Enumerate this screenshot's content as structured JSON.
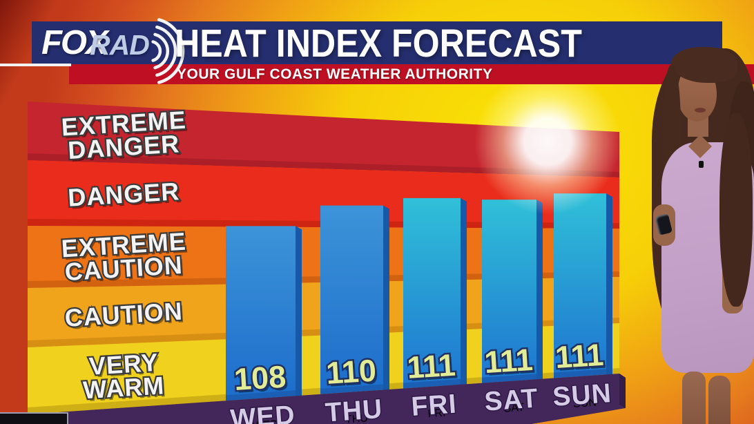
{
  "station": {
    "logo_fox": "FOX",
    "logo_rad": "RAD"
  },
  "header": {
    "title": "HEAT INDEX FORECAST",
    "subtitle": "YOUR GULF COAST WEATHER AUTHORITY"
  },
  "chart_data": {
    "type": "bar",
    "title": "HEAT INDEX FORECAST",
    "categories": [
      "WED",
      "THU",
      "FRI",
      "SAT",
      "SUN"
    ],
    "values": [
      108,
      110,
      111,
      111,
      111
    ],
    "risk_bands": [
      {
        "label": "EXTREME DANGER",
        "lines": [
          "EXTREME",
          "DANGER"
        ],
        "color": "#C5252E",
        "bevel": "#AD1F28"
      },
      {
        "label": "DANGER",
        "lines": [
          "DANGER"
        ],
        "color": "#E92C1B",
        "bevel": "#CE2512"
      },
      {
        "label": "EXTREME CAUTION",
        "lines": [
          "EXTREME",
          "CAUTION"
        ],
        "color": "#EE7317",
        "bevel": "#D2620F"
      },
      {
        "label": "CAUTION",
        "lines": [
          "CAUTION"
        ],
        "color": "#F0A41B",
        "bevel": "#D68E13"
      },
      {
        "label": "VERY WARM",
        "lines": [
          "VERY",
          "WARM"
        ],
        "color": "#EFD11E",
        "bevel": "#CEAF15"
      }
    ],
    "legend_position": "left-inside",
    "grid": false,
    "colors": {
      "bar_top_near": "#3D94D8",
      "bar_bottom_near": "#1C6CCB",
      "bar_top_far": "#30C0D8",
      "bar_bottom_far": "#1E74D0",
      "bar_side": "#1659A8",
      "value_text": "#E2EC96",
      "day_text": "#D5CBE7",
      "axis_strip": "#44275A",
      "axis_strip_side": "#331C45"
    }
  },
  "background": {
    "sun_glow": "#FFFFFF",
    "gradient_yellow": "#F6CF08",
    "gradient_orange": "#E57A1E",
    "gradient_red": "#C23A1A",
    "header_navy": "#252E6E",
    "header_red": "#BE1022"
  }
}
